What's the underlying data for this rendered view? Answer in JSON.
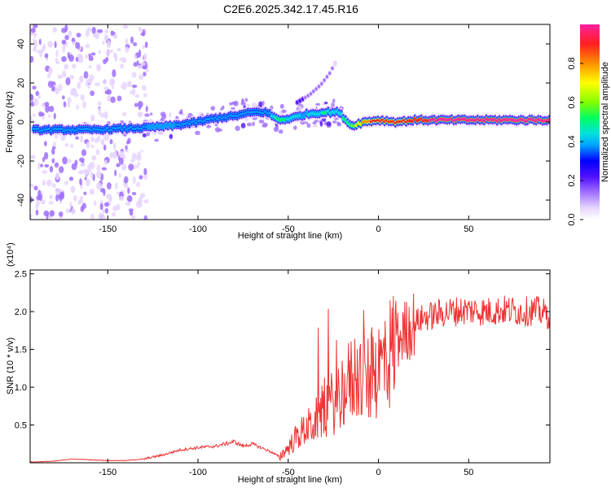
{
  "figure": {
    "title": "C2E6.2025.342.17.45.R16"
  },
  "colors": {
    "background": "#ffffff",
    "axis": "#000000",
    "snr_line": "#ee3333",
    "colormap": [
      "#ffffff",
      "#e6d5ff",
      "#a070ff",
      "#5010ff",
      "#0000ff",
      "#00a0ff",
      "#00e0e0",
      "#00ff60",
      "#80ff00",
      "#ffff00",
      "#ff9000",
      "#ff2020",
      "#ff20a0"
    ]
  },
  "chart_data": [
    {
      "type": "heatmap",
      "name": "spectrogram",
      "title": "C2E6.2025.342.17.45.R16",
      "xlabel": "Height of straight line (km)",
      "ylabel": "Frequency (Hz)",
      "xlim": [
        -193,
        95
      ],
      "ylim": [
        -50,
        50
      ],
      "xticks": [
        -150,
        -100,
        -50,
        0,
        50
      ],
      "xtick_labels": [
        "-150",
        "-100",
        "-50",
        "0",
        "50"
      ],
      "yticks": [
        -40,
        -20,
        0,
        20,
        40
      ],
      "ytick_labels": [
        "-40",
        "-20",
        "0",
        "20",
        "40"
      ],
      "colorbar": {
        "label": "Normalized spectral amplitude",
        "range": [
          0,
          1
        ],
        "ticks": [
          0.0,
          0.2,
          0.4,
          0.6,
          0.8
        ],
        "tick_labels": [
          "0.0",
          "0.2",
          "0.4",
          "0.6",
          "0.8"
        ]
      },
      "ridge": {
        "x": [
          -190,
          -175,
          -160,
          -145,
          -130,
          -115,
          -100,
          -90,
          -80,
          -70,
          -62,
          -55,
          -48,
          -40,
          -30,
          -22,
          -15,
          -8,
          0,
          10,
          20,
          40,
          60,
          80,
          95
        ],
        "freq": [
          -4,
          -4,
          -4,
          -3.5,
          -3,
          -2,
          0,
          2,
          3,
          5,
          5,
          1,
          2,
          4,
          5,
          5,
          -2,
          0,
          1,
          0,
          1,
          1,
          1,
          1,
          1
        ],
        "amplitude": [
          0.42,
          0.38,
          0.4,
          0.42,
          0.44,
          0.45,
          0.4,
          0.38,
          0.4,
          0.42,
          0.38,
          0.6,
          0.48,
          0.45,
          0.55,
          0.5,
          0.62,
          0.85,
          0.9,
          0.9,
          0.95,
          0.97,
          0.98,
          0.98,
          0.96
        ]
      },
      "branch": {
        "x": [
          -45,
          -38,
          -32,
          -27,
          -24
        ],
        "freq": [
          10,
          14,
          19,
          25,
          30
        ],
        "amplitude": [
          0.22,
          0.2,
          0.18,
          0.15,
          0.12
        ]
      }
    },
    {
      "type": "line",
      "name": "snr",
      "title": "",
      "xlabel": "Height of straight line (km)",
      "ylabel": "SNR (10 * v/v)",
      "multiplier": "(x10⁴)",
      "xlim": [
        -193,
        95
      ],
      "ylim": [
        0,
        2.55
      ],
      "xticks": [
        -150,
        -100,
        -50,
        0,
        50
      ],
      "xtick_labels": [
        "-150",
        "-100",
        "-50",
        "0",
        "50"
      ],
      "yticks": [
        0.5,
        1.0,
        1.5,
        2.0,
        2.5
      ],
      "ytick_labels": [
        "0.5",
        "1.0",
        "1.5",
        "2.0",
        "2.5"
      ],
      "series": [
        {
          "name": "SNR",
          "x": [
            -193,
            -180,
            -170,
            -160,
            -150,
            -140,
            -130,
            -120,
            -110,
            -100,
            -95,
            -90,
            -85,
            -80,
            -75,
            -70,
            -65,
            -60,
            -55,
            -50,
            -45,
            -40,
            -35,
            -30,
            -25,
            -20,
            -15,
            -12,
            -8,
            -4,
            0,
            5,
            10,
            15,
            20,
            25,
            30,
            35,
            40,
            50,
            60,
            70,
            80,
            88,
            95
          ],
          "y": [
            0.01,
            0.02,
            0.05,
            0.04,
            0.03,
            0.03,
            0.05,
            0.1,
            0.17,
            0.2,
            0.21,
            0.22,
            0.25,
            0.28,
            0.22,
            0.25,
            0.2,
            0.15,
            0.08,
            0.2,
            0.35,
            0.45,
            0.55,
            0.7,
            0.8,
            0.95,
            1.1,
            1.2,
            1.05,
            1.15,
            1.25,
            1.4,
            1.6,
            1.75,
            1.85,
            1.92,
            1.95,
            1.98,
            2.0,
            2.02,
            2.0,
            2.02,
            2.0,
            2.01,
            1.95
          ]
        }
      ]
    }
  ]
}
